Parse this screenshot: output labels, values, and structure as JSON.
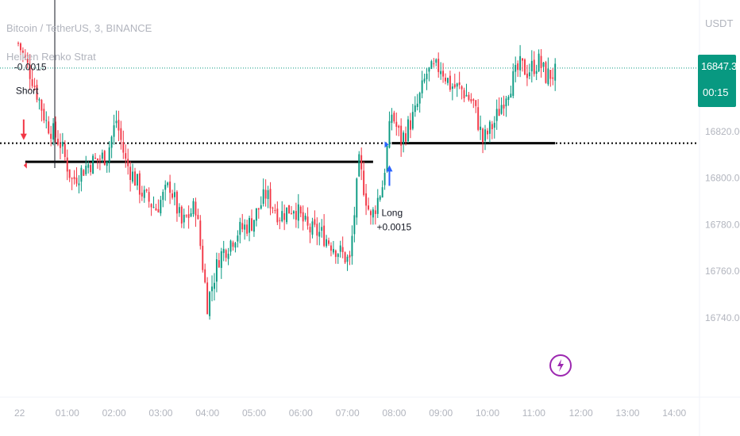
{
  "header": {
    "symbol_line": "Bitcoin / TetherUS, 3, BINANCE",
    "indicator_line": "Heiken Renko Strat"
  },
  "price_scale": {
    "currency": "USDT",
    "last_price": "16847.32",
    "countdown": "00:15",
    "badge_color": "#089981"
  },
  "signals": {
    "short": {
      "label": "Short",
      "value": "-0.0015",
      "color": "#f23645"
    },
    "long": {
      "label": "Long",
      "value": "+0.0015",
      "color": "#2962ff"
    }
  },
  "icons": {
    "lightning": "lightning-bolt-icon"
  },
  "chart_data": {
    "type": "candlestick",
    "title": "Bitcoin / TetherUS, 3, BINANCE",
    "y_ticks": [
      16820,
      16800,
      16780,
      16760,
      16740
    ],
    "y_tick_labels": [
      "16820.00",
      "16800.00",
      "16780.00",
      "16760.00",
      "16740.00"
    ],
    "x_tick_labels": [
      "22",
      "01:00",
      "02:00",
      "03:00",
      "04:00",
      "05:00",
      "06:00",
      "07:00",
      "08:00",
      "09:00",
      "10:00",
      "11:00",
      "12:00",
      "13:00",
      "14:00"
    ],
    "x_tick_hours": [
      0,
      1,
      2,
      3,
      4,
      5,
      6,
      7,
      8,
      9,
      10,
      11,
      12,
      13,
      14
    ],
    "ylim": [
      16736,
      16866
    ],
    "xlim": [
      -0.3,
      14.2
    ],
    "last_price": 16847.32,
    "up_color": "#089981",
    "down_color": "#f23645",
    "series_last_hour": 11.5,
    "close_anchors": [
      [
        0.0,
        16858
      ],
      [
        0.3,
        16843
      ],
      [
        0.6,
        16824
      ],
      [
        0.9,
        16815
      ],
      [
        1.15,
        16799
      ],
      [
        1.5,
        16806
      ],
      [
        1.9,
        16810
      ],
      [
        2.1,
        16825
      ],
      [
        2.3,
        16807
      ],
      [
        2.7,
        16792
      ],
      [
        2.95,
        16787
      ],
      [
        3.25,
        16797
      ],
      [
        3.5,
        16780
      ],
      [
        3.8,
        16788
      ],
      [
        4.05,
        16746
      ],
      [
        4.3,
        16766
      ],
      [
        4.7,
        16777
      ],
      [
        5.0,
        16781
      ],
      [
        5.3,
        16793
      ],
      [
        5.6,
        16784
      ],
      [
        5.9,
        16788
      ],
      [
        6.2,
        16778
      ],
      [
        6.5,
        16776
      ],
      [
        6.8,
        16770
      ],
      [
        7.1,
        16764
      ],
      [
        7.3,
        16806
      ],
      [
        7.55,
        16782
      ],
      [
        7.8,
        16797
      ],
      [
        8.0,
        16828
      ],
      [
        8.2,
        16816
      ],
      [
        8.5,
        16828
      ],
      [
        8.75,
        16845
      ],
      [
        9.05,
        16848
      ],
      [
        9.25,
        16840
      ],
      [
        9.5,
        16838
      ],
      [
        9.75,
        16832
      ],
      [
        9.95,
        16816
      ],
      [
        10.2,
        16824
      ],
      [
        10.45,
        16837
      ],
      [
        10.75,
        16848
      ],
      [
        10.9,
        16846
      ],
      [
        11.15,
        16850
      ],
      [
        11.3,
        16844
      ],
      [
        11.5,
        16845
      ]
    ],
    "levels": [
      {
        "type": "dotted",
        "value": 16847.32,
        "color": "#089981"
      },
      {
        "type": "dotted",
        "value": 16815,
        "color": "#000000"
      },
      {
        "type": "solid",
        "value": 16807,
        "from_hour": 0.15,
        "to_hour": 7.6,
        "color": "#000000"
      },
      {
        "type": "solid",
        "value": 16815,
        "from_hour": 8.0,
        "to_hour": 11.5,
        "color": "#000000"
      }
    ],
    "signals": [
      {
        "name": "Short",
        "hour": 0.15,
        "price": 16815,
        "direction": "down"
      },
      {
        "name": "Long",
        "hour": 7.95,
        "price": 16811,
        "direction": "up"
      }
    ]
  }
}
